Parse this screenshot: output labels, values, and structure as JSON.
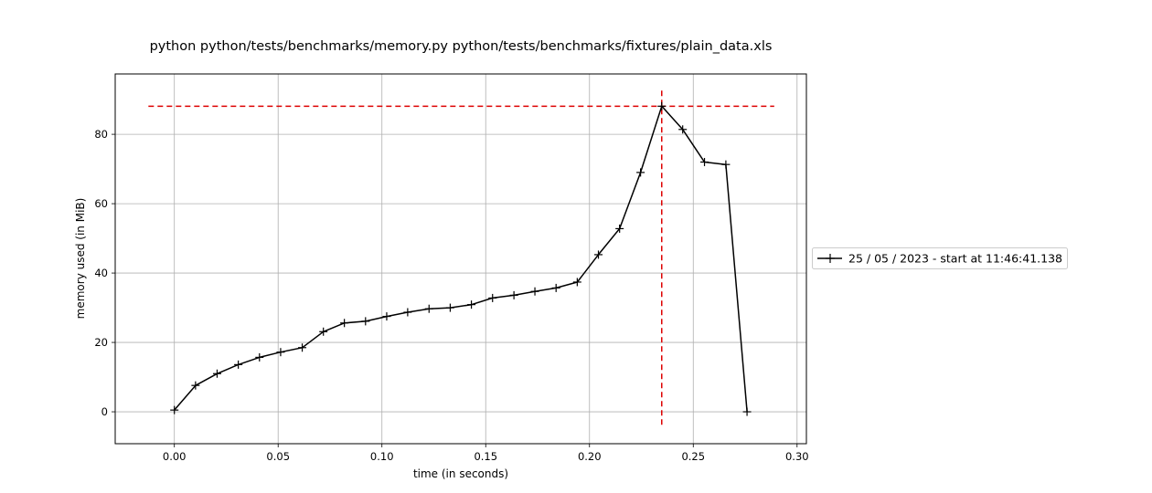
{
  "chart_data": {
    "type": "line",
    "title": "python python/tests/benchmarks/memory.py python/tests/benchmarks/fixtures/plain_data.xls",
    "xlabel": "time (in seconds)",
    "ylabel": "memory used (in MiB)",
    "xlim": [
      -0.0285,
      0.3045
    ],
    "ylim": [
      -9.2,
      97.4
    ],
    "x_ticks": [
      0.0,
      0.05,
      0.1,
      0.15,
      0.2,
      0.25,
      0.3
    ],
    "x_tick_labels": [
      "0.00",
      "0.05",
      "0.10",
      "0.15",
      "0.20",
      "0.25",
      "0.30"
    ],
    "y_ticks": [
      0,
      20,
      40,
      60,
      80
    ],
    "y_tick_labels": [
      "0",
      "20",
      "40",
      "60",
      "80"
    ],
    "grid": true,
    "legend_position": "outside-right",
    "series": [
      {
        "name": "25 / 05 / 2023 - start at 11:46:41.138",
        "color": "#000000",
        "marker": "+",
        "x": [
          0.0,
          0.0102,
          0.0206,
          0.0308,
          0.041,
          0.0512,
          0.0616,
          0.0718,
          0.0819,
          0.0921,
          0.1023,
          0.1124,
          0.1227,
          0.1329,
          0.1431,
          0.1533,
          0.1636,
          0.1737,
          0.1839,
          0.1941,
          0.2043,
          0.2145,
          0.2246,
          0.2348,
          0.2449,
          0.2554,
          0.2657,
          0.2759
        ],
        "y": [
          0.5,
          7.6,
          11.0,
          13.6,
          15.7,
          17.2,
          18.5,
          23.1,
          25.6,
          26.1,
          27.5,
          28.7,
          29.7,
          30.0,
          30.9,
          32.8,
          33.6,
          34.7,
          35.7,
          37.4,
          45.3,
          52.8,
          69.0,
          88.1,
          81.4,
          72.0,
          71.3,
          0.0
        ]
      }
    ],
    "annotations": {
      "peak_color": "#dd0000",
      "peak_hline": {
        "y": 88.1,
        "x_from": -0.0125,
        "x_to": 0.289
      },
      "peak_vline": {
        "x": 0.2348,
        "y_from": -4.2,
        "y_to": 92.6
      }
    }
  }
}
